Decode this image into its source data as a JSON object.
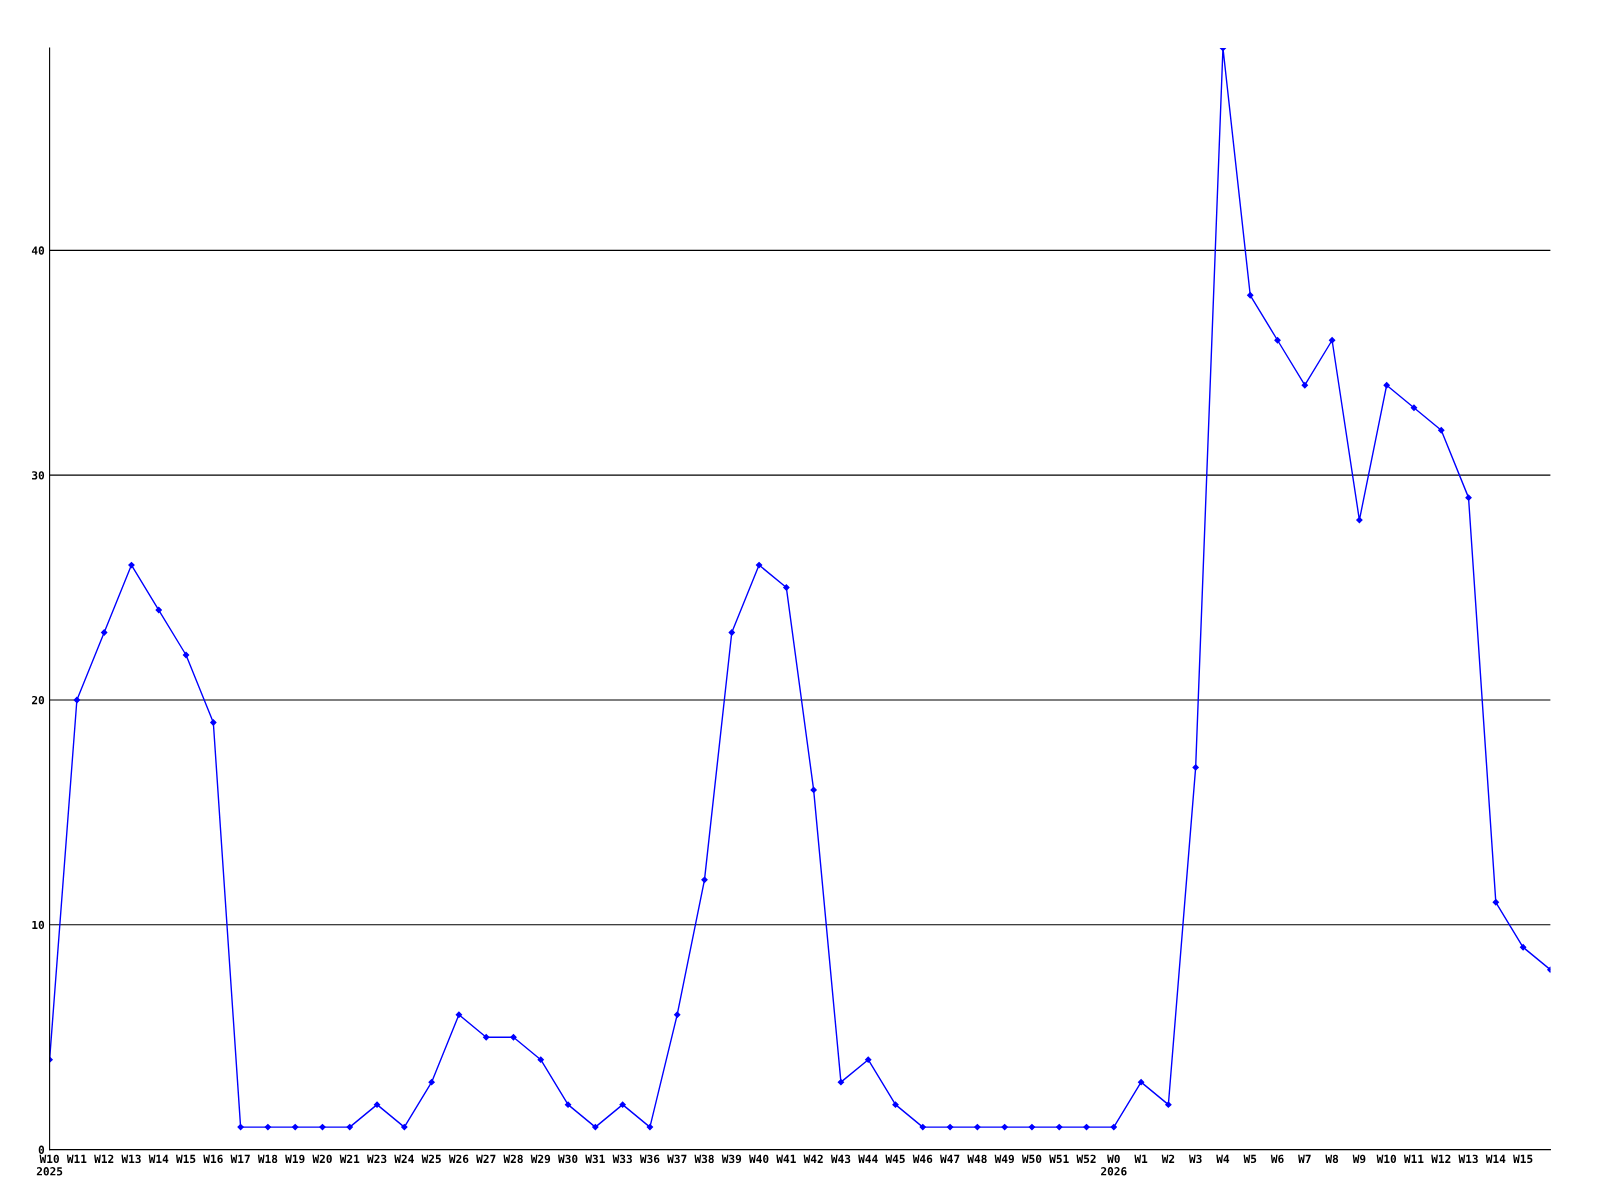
{
  "chart_data": {
    "type": "line",
    "categories": [
      "W10\n2025",
      "W11",
      "W12",
      "W13",
      "W14",
      "W15",
      "W16",
      "W17",
      "W18",
      "W19",
      "W20",
      "W21",
      "W23",
      "W24",
      "W25",
      "W26",
      "W27",
      "W28",
      "W29",
      "W30",
      "W31",
      "W33",
      "W36",
      "W37",
      "W38",
      "W39",
      "W40",
      "W41",
      "W42",
      "W43",
      "W44",
      "W45",
      "W46",
      "W47",
      "W48",
      "W49",
      "W50",
      "W51",
      "W52",
      "W0\n2026",
      "W1",
      "W2",
      "W3",
      "W4",
      "W5",
      "W6",
      "W7",
      "W8",
      "W9",
      "W10",
      "W11",
      "W12",
      "W13",
      "W14",
      "W15",
      null
    ],
    "series": [
      {
        "color": "#0000ff",
        "values": [
          4,
          20,
          23,
          26,
          24,
          22,
          19,
          1,
          1,
          1,
          1,
          1,
          2,
          1,
          3,
          6,
          5,
          5,
          4,
          2,
          1,
          2,
          1,
          6,
          12,
          23,
          26,
          25,
          16,
          3,
          4,
          2,
          1,
          1,
          1,
          1,
          1,
          1,
          1,
          1,
          3,
          2,
          17,
          49,
          38,
          36,
          34,
          36,
          28,
          34,
          33,
          32,
          29,
          11,
          9,
          8
        ]
      }
    ],
    "ylim": [
      0,
      49
    ],
    "yticks": [
      0,
      10,
      20,
      30,
      40
    ],
    "grid": "y",
    "legend": false,
    "marker": "diamond",
    "line_style": "solid"
  }
}
